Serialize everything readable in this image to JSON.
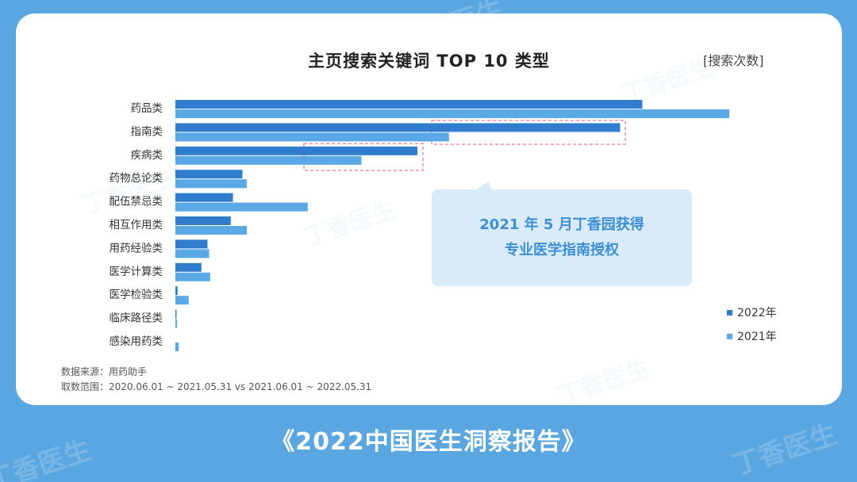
{
  "watermark": "丁香医生",
  "report_title": "《2022中国医生洞察报告》",
  "chart_data": {
    "type": "bar",
    "orientation": "horizontal",
    "title": "主页搜索关键词 TOP 10 类型",
    "unit": "[搜索次数]",
    "categories": [
      "药品类",
      "指南类",
      "疾病类",
      "药物总论类",
      "配伍禁忌类",
      "相互作用类",
      "用药经验类",
      "医学计算类",
      "医学检验类",
      "临床路径类",
      "感染用药类"
    ],
    "series": [
      {
        "name": "2022年",
        "color": "#2f7dcc",
        "values": [
          84.3,
          80.3,
          43.7,
          12.1,
          10.4,
          10.0,
          5.8,
          4.7,
          0.4,
          0.1,
          0.0
        ]
      },
      {
        "name": "2021年",
        "color": "#5aa9e6",
        "values": [
          100.0,
          49.4,
          33.6,
          12.9,
          23.9,
          12.9,
          6.1,
          6.3,
          2.4,
          0.3,
          0.6
        ]
      }
    ],
    "xlim": [
      0,
      100
    ],
    "legend_position": "bottom-right",
    "grid": false,
    "annotation": [
      "2021 年 5 月丁香园获得",
      "专业医学指南授权"
    ],
    "source": "数据来源：用药助手",
    "range": "取数范围：2020.06.01 ~ 2021.05.31 vs 2021.06.01 ~ 2022.05.31"
  }
}
